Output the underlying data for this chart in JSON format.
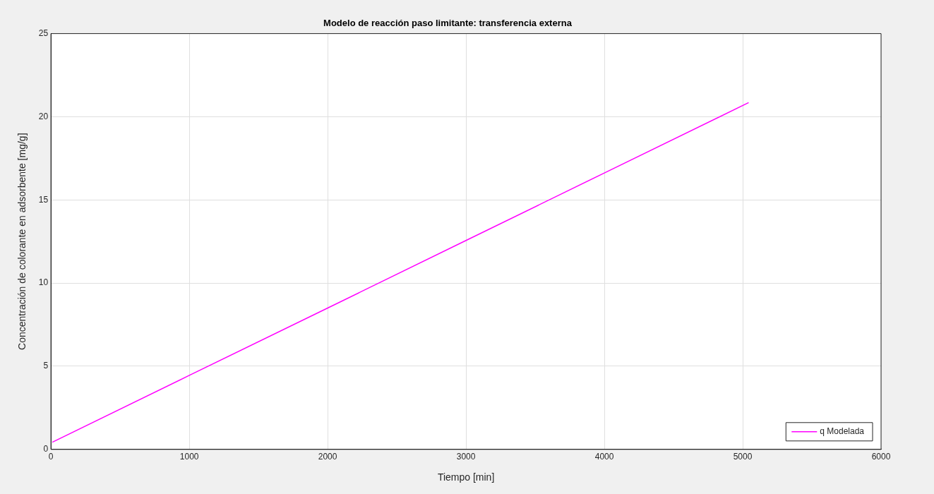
{
  "chart_data": {
    "type": "line",
    "title": "Modelo de reacción paso limitante: transferencia externa",
    "xlabel": "Tiempo [min]",
    "ylabel": "Concentración de colorante en adsorbente [mg/g]",
    "x": [
      10,
      1000,
      2000,
      3000,
      4000,
      5043
    ],
    "series": [
      {
        "name": "q Modelada",
        "color": "#ff00ff",
        "values": [
          0.43,
          4.45,
          8.5,
          12.56,
          16.62,
          20.85
        ]
      }
    ],
    "xlim": [
      0,
      6000
    ],
    "xticks": [
      0,
      1000,
      2000,
      3000,
      4000,
      5000,
      6000
    ],
    "ylim": [
      0,
      25
    ],
    "yticks": [
      0,
      5,
      10,
      15,
      20,
      25
    ],
    "grid": true,
    "legend": "bottom right",
    "marker": "none",
    "line_style": "solid"
  }
}
